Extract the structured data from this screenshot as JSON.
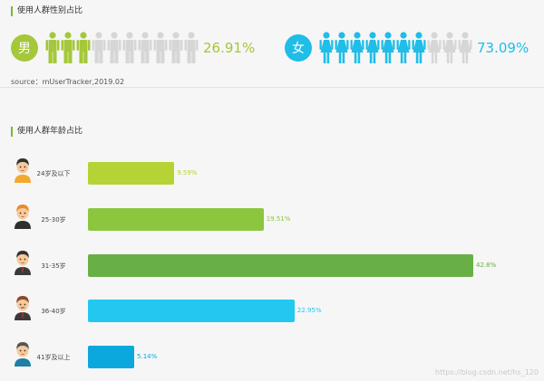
{
  "section_gender": {
    "title": "使用人群性别占比"
  },
  "section_age": {
    "title": "使用人群年龄占比"
  },
  "source": "source：mUserTracker,2019.02",
  "watermark": "https://blog.csdn.net/hs_120",
  "colors": {
    "male": "#a5c73a",
    "female": "#1fbde8",
    "inactive_figure": "#d6d6d6",
    "title_accent": "#79b82c"
  },
  "chart_data": [
    {
      "type": "pictograph",
      "title": "使用人群性别占比",
      "figures_per_row": 10,
      "series": [
        {
          "name": "男",
          "label": "26.91%",
          "value": 26.91,
          "icon": "male-figure-icon"
        },
        {
          "name": "女",
          "label": "73.09%",
          "value": 73.09,
          "icon": "female-figure-icon"
        }
      ]
    },
    {
      "type": "bar",
      "orientation": "horizontal",
      "title": "使用人群年龄占比",
      "categories": [
        "24岁及以下",
        "25-30岁",
        "31-35岁",
        "36-40岁",
        "41岁及以上"
      ],
      "values": [
        9.59,
        19.51,
        42.8,
        22.95,
        5.14
      ],
      "value_labels": [
        "9.59%",
        "19.51%",
        "42.8%",
        "22.95%",
        "5.14%"
      ],
      "bar_colors": [
        "#b5d334",
        "#8cc63f",
        "#68b046",
        "#22c8f0",
        "#0aa8dc"
      ],
      "avatars": [
        "young-man-avatar-icon",
        "orange-hair-man-avatar-icon",
        "suited-man-avatar-icon",
        "mustache-man-avatar-icon",
        "older-man-avatar-icon"
      ],
      "xlim": [
        0,
        42.8
      ],
      "grid": false
    }
  ]
}
